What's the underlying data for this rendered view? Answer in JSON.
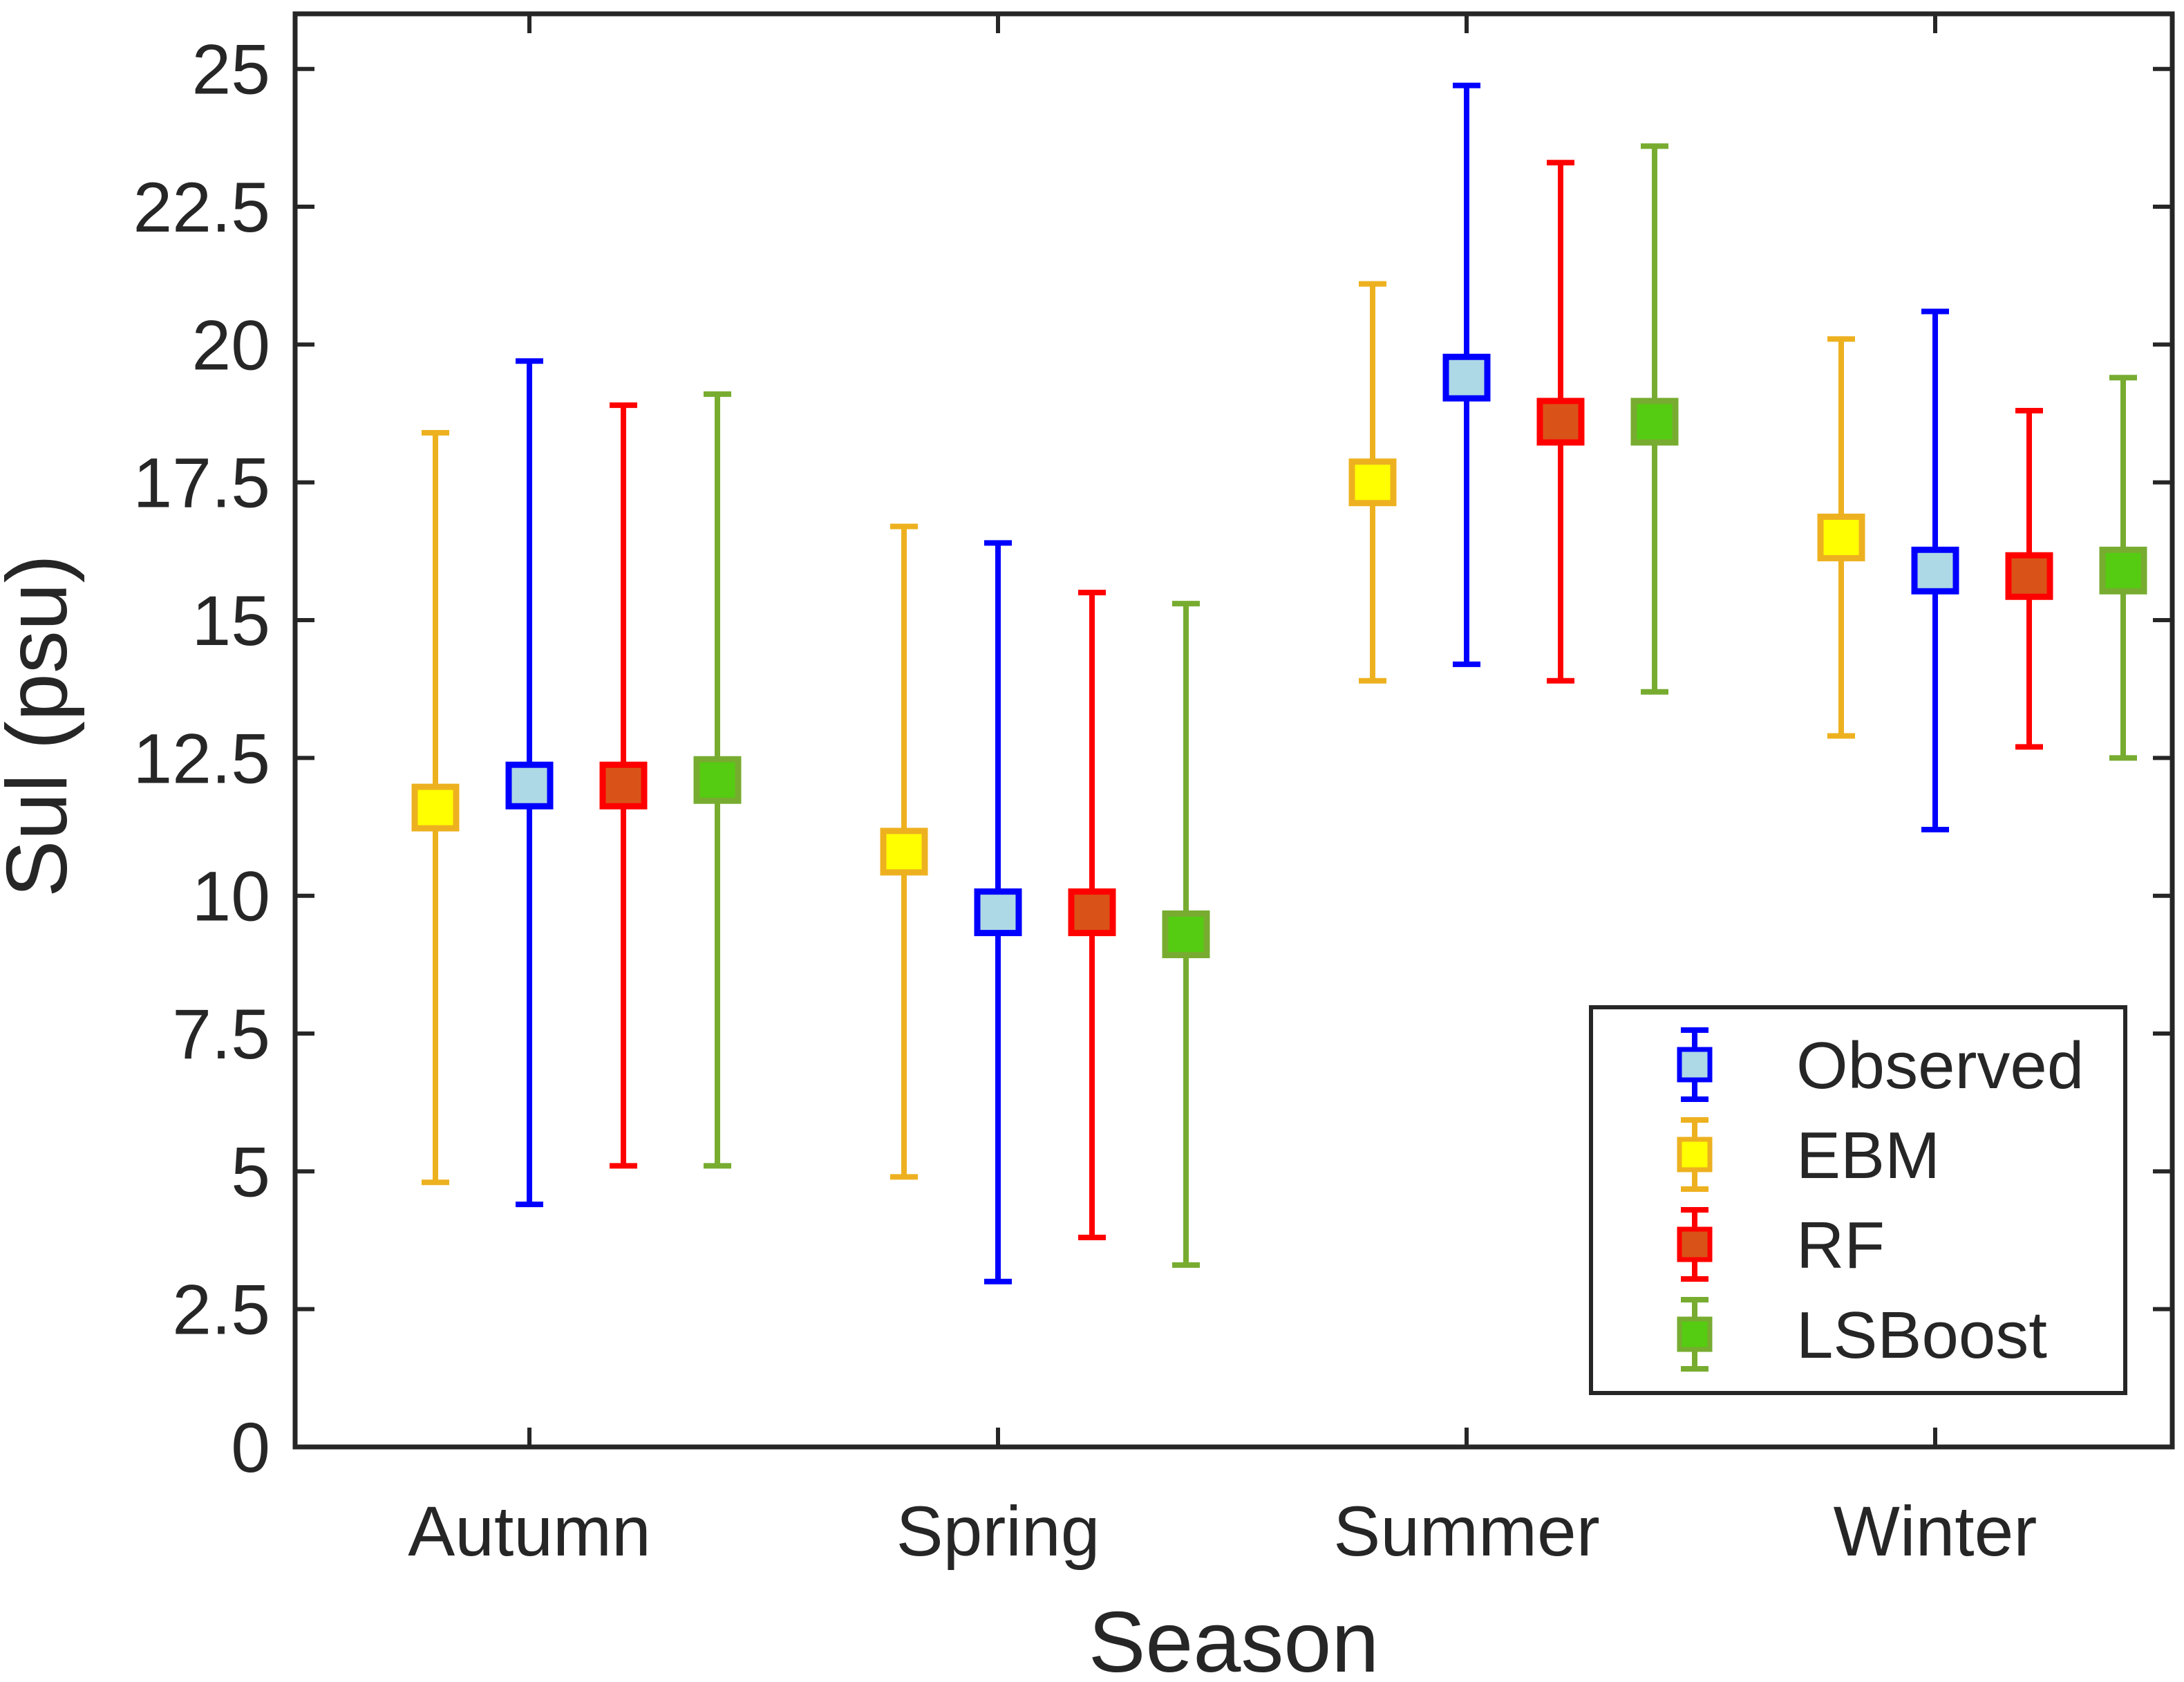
{
  "chart_data": {
    "type": "errorbar",
    "xlabel": "Season",
    "ylabel": "Sul (psu)",
    "categories": [
      "Autumn",
      "Spring",
      "Summer",
      "Winter"
    ],
    "ylim": [
      0,
      26
    ],
    "yticks": [
      0,
      2.5,
      5,
      7.5,
      10,
      12.5,
      15,
      17.5,
      20,
      22.5,
      25
    ],
    "ytick_labels": [
      "0",
      "2.5",
      "5",
      "7.5",
      "10",
      "12.5",
      "15",
      "17.5",
      "20",
      "22.5",
      "25"
    ],
    "legend_position": "bottom-right",
    "grid": false,
    "series": [
      {
        "name": "EBM",
        "line_color": "#EDB120",
        "face_color": "#FFFF00",
        "mean": [
          11.6,
          10.8,
          17.5,
          16.5
        ],
        "lower": [
          4.8,
          4.9,
          13.9,
          12.9
        ],
        "upper": [
          18.4,
          16.7,
          21.1,
          20.1
        ]
      },
      {
        "name": "Observed",
        "line_color": "#0000FF",
        "face_color": "#ADD8E6",
        "mean": [
          12.0,
          9.7,
          19.4,
          15.9
        ],
        "lower": [
          4.4,
          3.0,
          14.2,
          11.2
        ],
        "upper": [
          19.7,
          16.4,
          24.7,
          20.6
        ]
      },
      {
        "name": "RF",
        "line_color": "#FF0000",
        "face_color": "#D95319",
        "mean": [
          12.0,
          9.7,
          18.6,
          15.8
        ],
        "lower": [
          5.1,
          3.8,
          13.9,
          12.7
        ],
        "upper": [
          18.9,
          15.5,
          23.3,
          18.8
        ]
      },
      {
        "name": "LSBoost",
        "line_color": "#77AC30",
        "face_color": "#55CC11",
        "mean": [
          12.1,
          9.3,
          18.6,
          15.9
        ],
        "lower": [
          5.1,
          3.3,
          13.7,
          12.5
        ],
        "upper": [
          19.1,
          15.3,
          23.6,
          19.4
        ]
      }
    ],
    "legend_order": [
      "Observed",
      "EBM",
      "RF",
      "LSBoost"
    ]
  }
}
